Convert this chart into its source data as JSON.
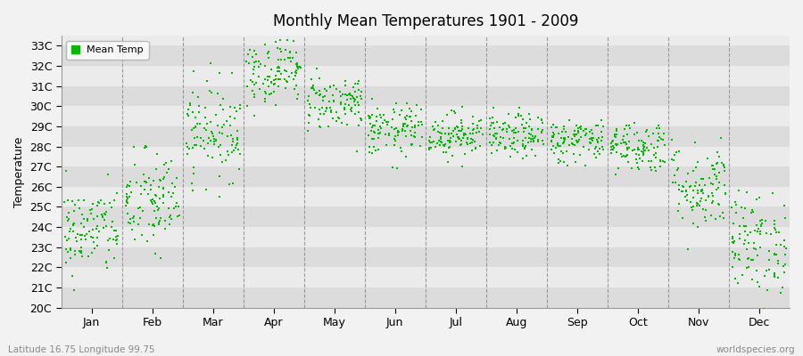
{
  "title": "Monthly Mean Temperatures 1901 - 2009",
  "ylabel": "Temperature",
  "xlabel_bottom": "Latitude 16.75 Longitude 99.75",
  "watermark": "worldspecies.org",
  "legend_label": "Mean Temp",
  "dot_color": "#00bb00",
  "background_color": "#f2f2f2",
  "plot_bg_light": "#ebebeb",
  "plot_bg_dark": "#dcdcdc",
  "months": [
    "Jan",
    "Feb",
    "Mar",
    "Apr",
    "May",
    "Jun",
    "Jul",
    "Aug",
    "Sep",
    "Oct",
    "Nov",
    "Dec"
  ],
  "month_means": [
    23.8,
    25.2,
    28.8,
    31.8,
    30.2,
    28.8,
    28.6,
    28.5,
    28.3,
    28.0,
    26.0,
    23.2
  ],
  "month_stds": [
    1.1,
    1.3,
    1.2,
    0.85,
    0.7,
    0.65,
    0.55,
    0.55,
    0.55,
    0.65,
    1.1,
    1.25
  ],
  "n_years": 109,
  "ylim": [
    20,
    33.5
  ],
  "figsize": [
    9.0,
    4.0
  ],
  "dpi": 100,
  "seed": 42
}
